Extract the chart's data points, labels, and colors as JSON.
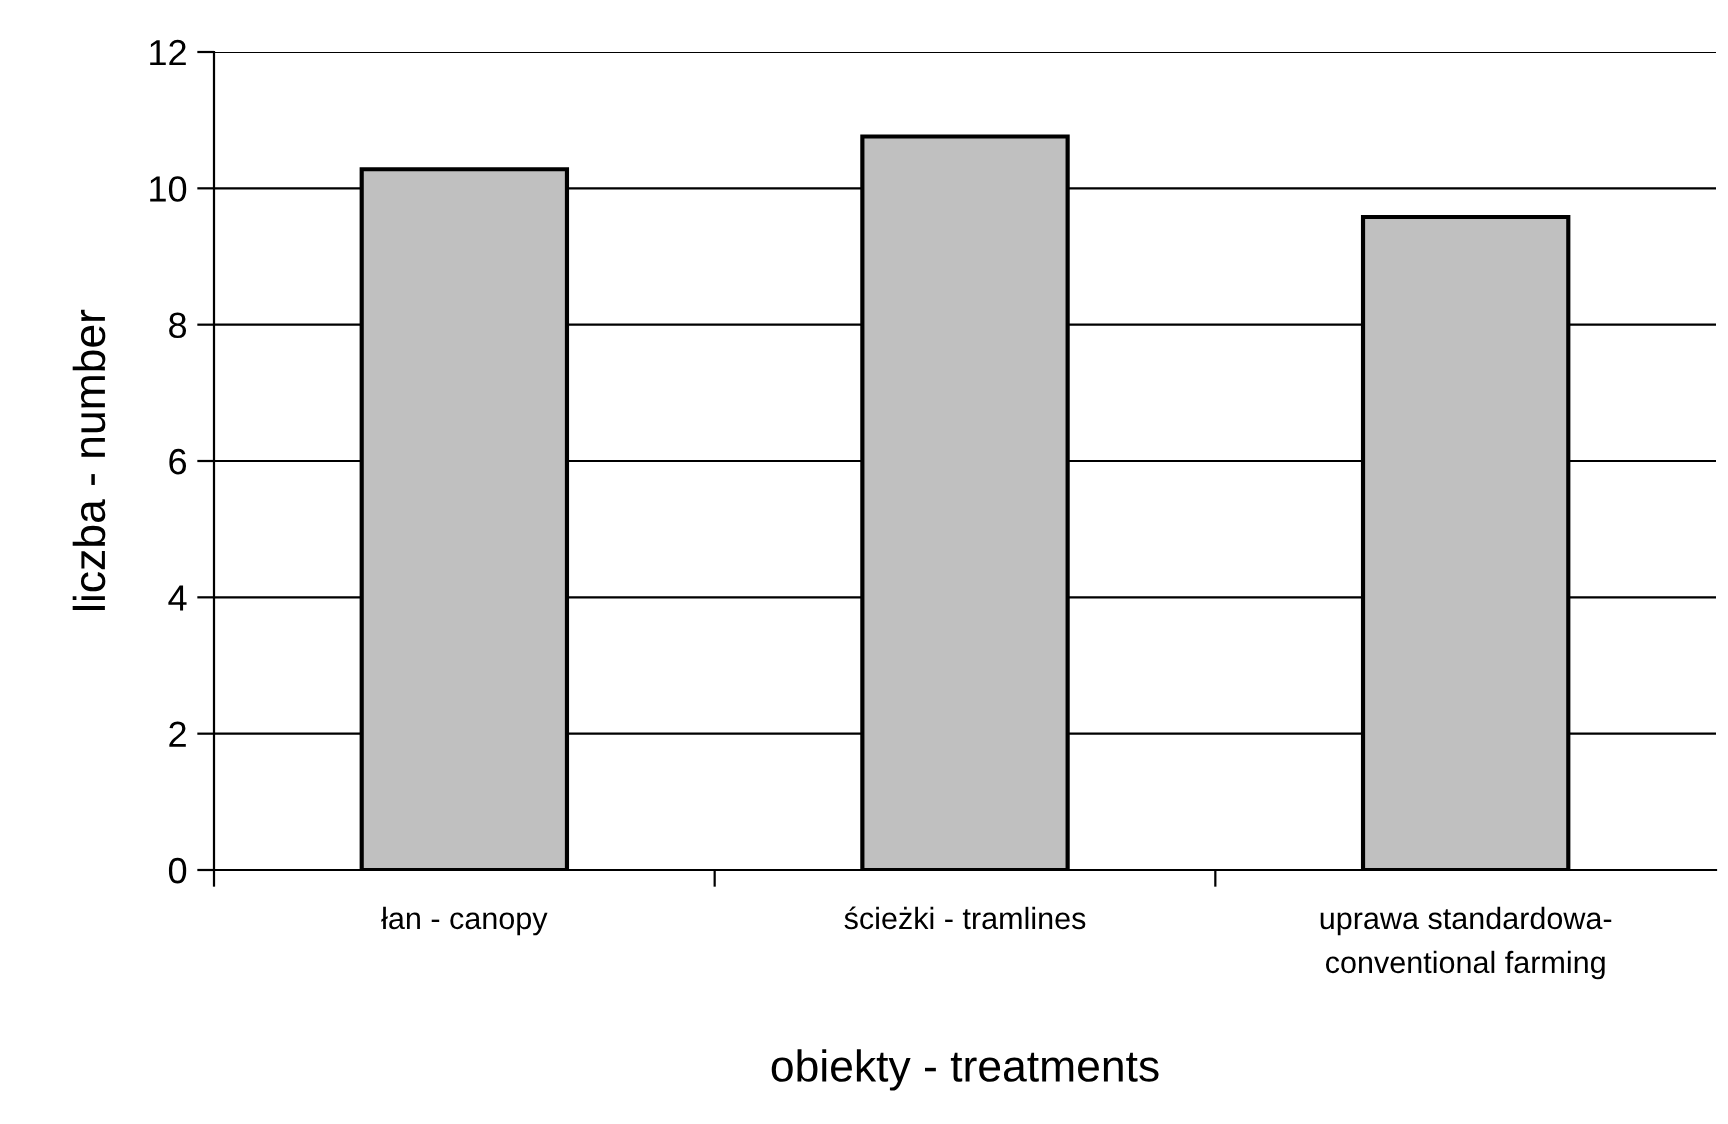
{
  "chart_data": {
    "type": "bar",
    "xlabel": "obiekty - treatments",
    "ylabel": "liczba - number",
    "categories": [
      "łan - canopy",
      "ścieżki - tramlines",
      "uprawa standardowa-\nconventional farming"
    ],
    "values": [
      10.28,
      10.76,
      9.58
    ],
    "color": "#c0c0c0",
    "ylim": [
      0,
      12
    ],
    "yticks": [
      0,
      2,
      4,
      6,
      8,
      10,
      12
    ],
    "grid": "y",
    "legend": false
  }
}
